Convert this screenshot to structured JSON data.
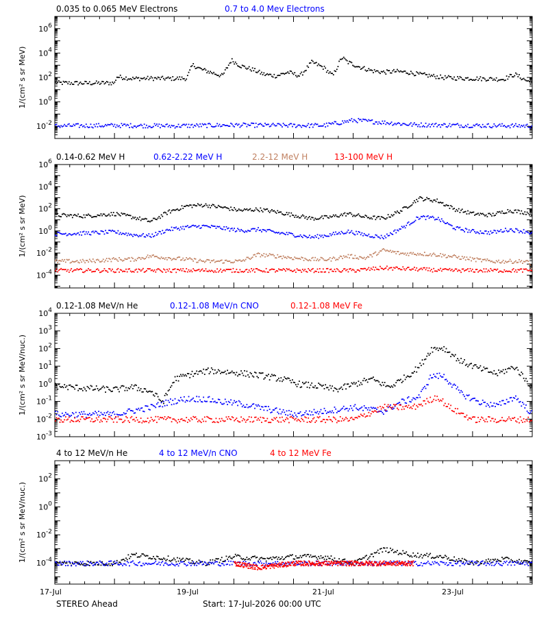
{
  "colors": {
    "black": "#000000",
    "blue": "#0000ff",
    "tan": "#c08060",
    "red": "#ff0000"
  },
  "footer": {
    "left": "STEREO Ahead",
    "center": "Start: 17-Jul-2026 00:00 UTC"
  },
  "chart_data": [
    {
      "type": "scatter",
      "y_scale": "log",
      "ylim": [
        0.001,
        10000000
      ],
      "ylabel": "1/(cm² s sr MeV)",
      "ytick_labels": [
        {
          "v": 1000000.0,
          "base": "10",
          "exp": "6"
        },
        {
          "v": 10000.0,
          "base": "10",
          "exp": "4"
        },
        {
          "v": 100.0,
          "base": "10",
          "exp": "2"
        },
        {
          "v": 1.0,
          "base": "10",
          "exp": "0"
        },
        {
          "v": 0.01,
          "base": "10",
          "exp": "-2"
        }
      ],
      "x_ticks": [
        "17-Jul",
        "19-Jul",
        "21-Jul",
        "23-Jul"
      ],
      "series": [
        {
          "name": "0.035 to 0.065 MeV Electrons",
          "color": "#000000",
          "x": [
            0,
            0.5,
            1,
            1.02,
            1.3,
            1.6,
            1.9,
            2.2,
            2.3,
            2.45,
            2.6,
            2.8,
            2.95,
            3.1,
            3.3,
            3.5,
            3.7,
            3.9,
            4.1,
            4.3,
            4.5,
            4.65,
            4.8,
            4.9,
            5.1,
            5.3,
            5.5,
            5.7,
            5.9,
            6.1,
            6.3,
            6.5,
            6.7,
            6.9,
            7.1,
            7.3,
            7.5,
            7.7,
            7.9,
            8.0
          ],
          "y": [
            40,
            38,
            40,
            130,
            90,
            95,
            90,
            95,
            1200,
            500,
            300,
            150,
            3000,
            1000,
            500,
            200,
            150,
            300,
            150,
            2000,
            700,
            150,
            5000,
            2000,
            800,
            400,
            300,
            350,
            300,
            200,
            150,
            110,
            100,
            95,
            90,
            85,
            80,
            200,
            60,
            40
          ]
        },
        {
          "name": "0.7 to 4.0 Mev Electrons",
          "color": "#0000ff",
          "x": [
            0,
            1,
            2,
            3,
            4,
            4.5,
            5,
            6,
            7,
            8
          ],
          "y": [
            0.012,
            0.013,
            0.012,
            0.014,
            0.013,
            0.013,
            0.035,
            0.015,
            0.013,
            0.012
          ]
        }
      ]
    },
    {
      "type": "scatter",
      "y_scale": "log",
      "ylim": [
        7e-06,
        1000000
      ],
      "ylabel": "1/(cm² s sr MeV)",
      "ytick_labels": [
        {
          "v": 1000000.0,
          "base": "10",
          "exp": "6"
        },
        {
          "v": 10000.0,
          "base": "10",
          "exp": "4"
        },
        {
          "v": 100.0,
          "base": "10",
          "exp": "2"
        },
        {
          "v": 1.0,
          "base": "10",
          "exp": "0"
        },
        {
          "v": 0.01,
          "base": "10",
          "exp": "-2"
        },
        {
          "v": 0.0001,
          "base": "10",
          "exp": "-4"
        }
      ],
      "x_ticks": [
        "17-Jul",
        "19-Jul",
        "21-Jul",
        "23-Jul"
      ],
      "series": [
        {
          "name": "0.14-0.62 MeV H",
          "color": "#000000",
          "x": [
            0,
            0.5,
            1,
            1.3,
            1.6,
            1.9,
            2.2,
            2.5,
            2.8,
            3.1,
            3.4,
            3.7,
            4,
            4.3,
            4.6,
            4.9,
            5.2,
            5.5,
            5.8,
            6.1,
            6.4,
            6.7,
            7,
            7.3,
            7.6,
            7.9,
            8
          ],
          "y": [
            30,
            25,
            40,
            20,
            8,
            60,
            200,
            250,
            150,
            80,
            100,
            60,
            30,
            15,
            20,
            40,
            20,
            15,
            80,
            1000,
            600,
            100,
            40,
            30,
            80,
            50,
            40
          ]
        },
        {
          "name": "0.62-2.22 MeV H",
          "color": "#0000ff",
          "x": [
            0,
            0.5,
            1,
            1.3,
            1.6,
            1.9,
            2.2,
            2.5,
            2.8,
            3.1,
            3.4,
            3.7,
            4,
            4.3,
            4.6,
            4.9,
            5.2,
            5.5,
            5.8,
            6.1,
            6.4,
            6.7,
            7,
            7.3,
            7.6,
            7.9,
            8
          ],
          "y": [
            0.6,
            0.7,
            0.9,
            0.5,
            0.4,
            1.5,
            2.5,
            3,
            2,
            1.2,
            1.5,
            0.8,
            0.5,
            0.3,
            0.5,
            1,
            0.5,
            0.3,
            2,
            20,
            15,
            2,
            1,
            0.8,
            1.5,
            1,
            0.6
          ]
        },
        {
          "name": "2.2-12 MeV H",
          "color": "#c08060",
          "x": [
            0,
            0.5,
            1,
            1.3,
            1.6,
            1.9,
            2.2,
            2.5,
            2.8,
            3.1,
            3.4,
            3.7,
            4,
            4.3,
            4.6,
            4.9,
            5.2,
            5.5,
            5.8,
            6.1,
            6.4,
            6.7,
            7,
            7.3,
            7.6,
            7.9,
            8
          ],
          "y": [
            0.002,
            0.002,
            0.003,
            0.003,
            0.006,
            0.004,
            0.003,
            0.002,
            0.002,
            0.002,
            0.008,
            0.006,
            0.004,
            0.003,
            0.003,
            0.006,
            0.004,
            0.02,
            0.01,
            0.01,
            0.008,
            0.005,
            0.003,
            0.002,
            0.002,
            0.002,
            0.0005
          ]
        },
        {
          "name": "13-100 MeV H",
          "color": "#ff0000",
          "x": [
            0,
            1,
            2,
            3,
            4,
            5,
            5.5,
            6,
            6.5,
            7,
            8
          ],
          "y": [
            0.0003,
            0.0003,
            0.0003,
            0.0003,
            0.0003,
            0.0003,
            0.0005,
            0.0004,
            0.0003,
            0.0003,
            0.0003
          ]
        }
      ]
    },
    {
      "type": "scatter",
      "y_scale": "log",
      "ylim": [
        0.001,
        10000
      ],
      "ylabel": "1/(cm² s sr MeV/nuc.)",
      "ytick_labels": [
        {
          "v": 10000.0,
          "base": "10",
          "exp": "4"
        },
        {
          "v": 1000.0,
          "base": "10",
          "exp": "3"
        },
        {
          "v": 100.0,
          "base": "10",
          "exp": "2"
        },
        {
          "v": 10.0,
          "base": "10",
          "exp": "1"
        },
        {
          "v": 1.0,
          "base": "10",
          "exp": "0"
        },
        {
          "v": 0.1,
          "base": "10",
          "exp": "-1"
        },
        {
          "v": 0.01,
          "base": "10",
          "exp": "-2"
        },
        {
          "v": 0.001,
          "base": "10",
          "exp": "-3"
        }
      ],
      "x_ticks": [
        "17-Jul",
        "19-Jul",
        "21-Jul",
        "23-Jul"
      ],
      "series": [
        {
          "name": "0.12-1.08 MeV/n He",
          "color": "#000000",
          "x": [
            0,
            0.5,
            1,
            1.3,
            1.6,
            1.8,
            2,
            2.3,
            2.6,
            2.9,
            3.2,
            3.5,
            3.8,
            4.1,
            4.4,
            4.7,
            5,
            5.3,
            5.6,
            5.9,
            6.1,
            6.3,
            6.5,
            6.8,
            7.1,
            7.4,
            7.7,
            8
          ],
          "y": [
            0.8,
            0.6,
            0.5,
            0.7,
            0.4,
            0.1,
            2,
            4,
            6,
            5,
            4,
            3,
            2,
            1,
            0.8,
            0.5,
            1,
            2,
            0.7,
            3,
            10,
            100,
            120,
            20,
            8,
            4,
            10,
            0.6
          ]
        },
        {
          "name": "0.12-1.08 MeV/n CNO",
          "color": "#0000ff",
          "x": [
            0,
            1,
            1.6,
            1.9,
            2.2,
            2.5,
            2.8,
            3.1,
            3.4,
            4,
            4.5,
            5,
            5.5,
            5.8,
            6.1,
            6.3,
            6.5,
            6.8,
            7.1,
            7.4,
            7.7,
            8
          ],
          "y": [
            0.02,
            0.02,
            0.05,
            0.1,
            0.15,
            0.15,
            0.1,
            0.08,
            0.05,
            0.02,
            0.03,
            0.05,
            0.03,
            0.1,
            0.2,
            3,
            3,
            0.3,
            0.1,
            0.06,
            0.2,
            0.02
          ]
        },
        {
          "name": "0.12-1.08 MeV Fe",
          "color": "#ff0000",
          "x": [
            0,
            1,
            2,
            3,
            4,
            5,
            5.5,
            6,
            6.2,
            6.4,
            6.6,
            7,
            8
          ],
          "y": [
            0.01,
            0.01,
            0.01,
            0.01,
            0.01,
            0.01,
            0.05,
            0.05,
            0.1,
            0.2,
            0.05,
            0.01,
            0.01
          ]
        }
      ]
    },
    {
      "type": "scatter",
      "y_scale": "log",
      "ylim": [
        3e-06,
        2000
      ],
      "ylabel": "1/(cm² s sr MeV/nuc.)",
      "ytick_labels": [
        {
          "v": 100.0,
          "base": "10",
          "exp": "2"
        },
        {
          "v": 1.0,
          "base": "10",
          "exp": "0"
        },
        {
          "v": 0.01,
          "base": "10",
          "exp": "-2"
        },
        {
          "v": 0.0001,
          "base": "10",
          "exp": "-4"
        }
      ],
      "x_ticks": [
        "17-Jul",
        "19-Jul",
        "21-Jul",
        "23-Jul"
      ],
      "series": [
        {
          "name": "4 to 12 MeV/n He",
          "color": "#000000",
          "x": [
            0,
            1,
            1.3,
            1.6,
            2,
            2.5,
            3,
            3.5,
            4,
            4.5,
            5,
            5.5,
            6,
            6.5,
            7,
            7.5,
            8
          ],
          "y": [
            0.0001,
            0.0001,
            0.0004,
            0.0003,
            0.0002,
            0.0001,
            0.0003,
            0.0002,
            0.0003,
            0.0003,
            0.0001,
            0.001,
            0.0004,
            0.0003,
            0.0001,
            0.0002,
            0.0001
          ]
        },
        {
          "name": "4 to 12 MeV/n CNO",
          "color": "#0000ff",
          "x": [
            0,
            2,
            2.2,
            3,
            4,
            5,
            6,
            7,
            8
          ],
          "y": [
            0.0001,
            0.0001,
            0.0001,
            0.0001,
            0.0001,
            0.0001,
            0.0001,
            0.0001,
            0.0001
          ]
        },
        {
          "name": "4 to 12 MeV Fe",
          "color": "#ff0000",
          "x": [
            3,
            3.4,
            4,
            5.5,
            6
          ],
          "y": [
            0.0001,
            5e-05,
            0.0001,
            0.0001,
            0.0001
          ]
        }
      ]
    }
  ]
}
